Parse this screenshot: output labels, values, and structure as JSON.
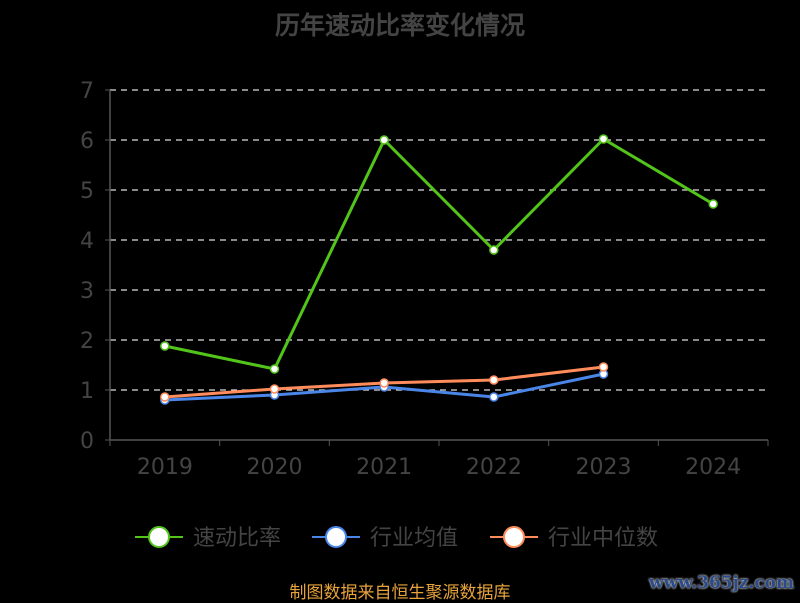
{
  "chart_data": {
    "type": "line",
    "title": "历年速动比率变化情况",
    "categories": [
      "2019",
      "2020",
      "2021",
      "2022",
      "2023",
      "2024"
    ],
    "ylim": [
      0,
      7
    ],
    "yticks": [
      "0",
      "1",
      "2",
      "3",
      "4",
      "5",
      "6",
      "7"
    ],
    "grid": true,
    "legend_placement": "bottom",
    "series": [
      {
        "name": "速动比率",
        "color": "#52c41a",
        "values": [
          1.88,
          1.42,
          6.0,
          3.8,
          6.02,
          4.72
        ]
      },
      {
        "name": "行业均值",
        "color": "#4a86e8",
        "values": [
          0.8,
          0.9,
          1.06,
          0.86,
          1.32,
          null
        ]
      },
      {
        "name": "行业中位数",
        "color": "#ff8c5a",
        "values": [
          0.86,
          1.02,
          1.14,
          1.2,
          1.46,
          null
        ]
      }
    ]
  },
  "source": "制图数据来自恒生聚源数据库",
  "watermark": "www.365jz.com"
}
